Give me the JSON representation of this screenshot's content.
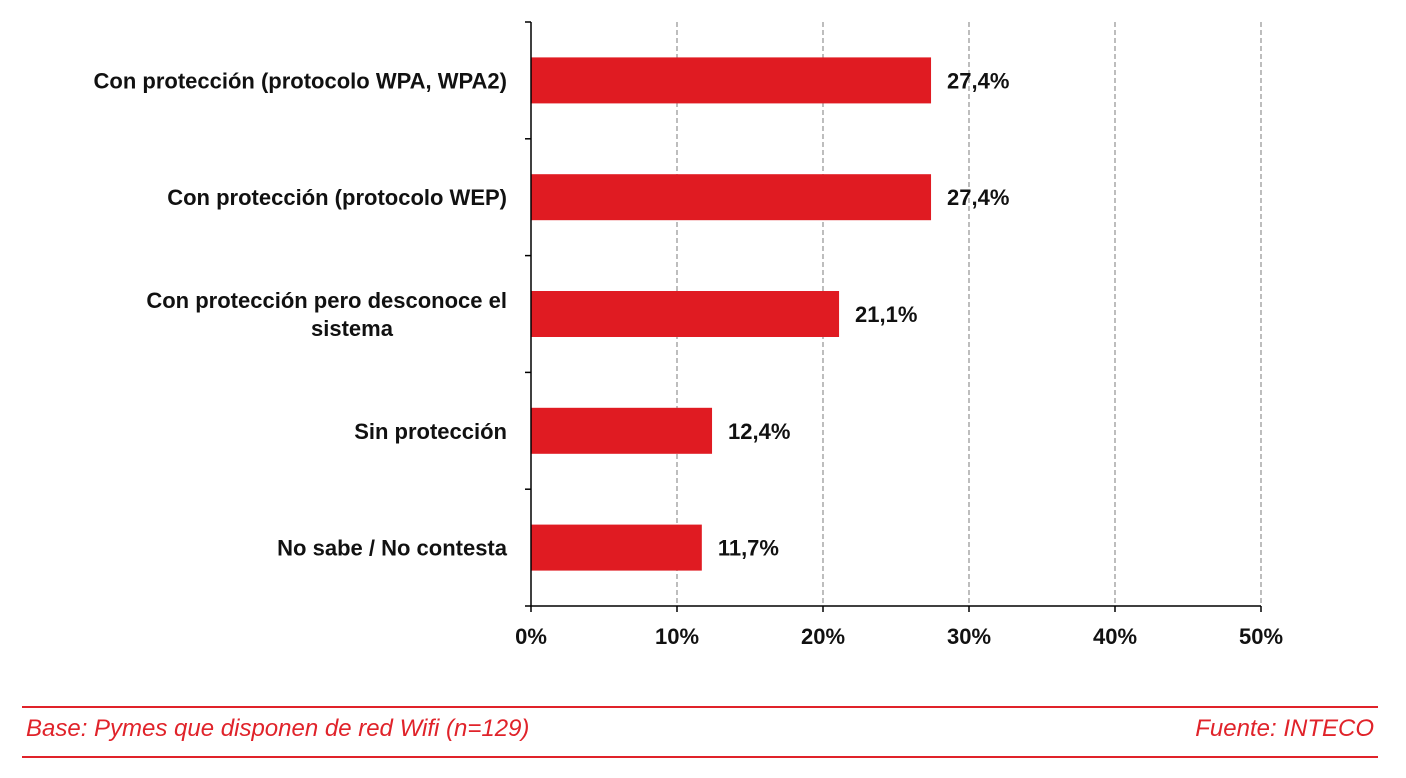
{
  "chart_data": {
    "type": "bar",
    "orientation": "horizontal",
    "categories": [
      "Con protección (protocolo WPA, WPA2)",
      "Con protección (protocolo WEP)",
      "Con protección pero desconoce el sistema",
      "Sin protección",
      "No sabe  / No contesta"
    ],
    "category_lines": [
      [
        "Con protección (protocolo WPA, WPA2)"
      ],
      [
        "Con protección (protocolo WEP)"
      ],
      [
        "Con protección pero desconoce el",
        "sistema"
      ],
      [
        "Sin protección"
      ],
      [
        "No sabe  / No contesta"
      ]
    ],
    "values": [
      27.4,
      27.4,
      21.1,
      12.4,
      11.7
    ],
    "data_labels": [
      "27,4%",
      "27,4%",
      "21,1%",
      "12,4%",
      "11,7%"
    ],
    "xlim": [
      0,
      50
    ],
    "xticks": [
      0,
      10,
      20,
      30,
      40,
      50
    ],
    "xtick_labels": [
      "0%",
      "10%",
      "20%",
      "30%",
      "40%",
      "50%"
    ],
    "grid": "vertical dashed",
    "bar_color": "#e01b22",
    "title": "",
    "xlabel": "",
    "ylabel": ""
  },
  "footer": {
    "base_text": "Base: Pymes que disponen de red Wifi (n=129)",
    "source_text": "Fuente: INTECO",
    "color": "#e0232a"
  }
}
